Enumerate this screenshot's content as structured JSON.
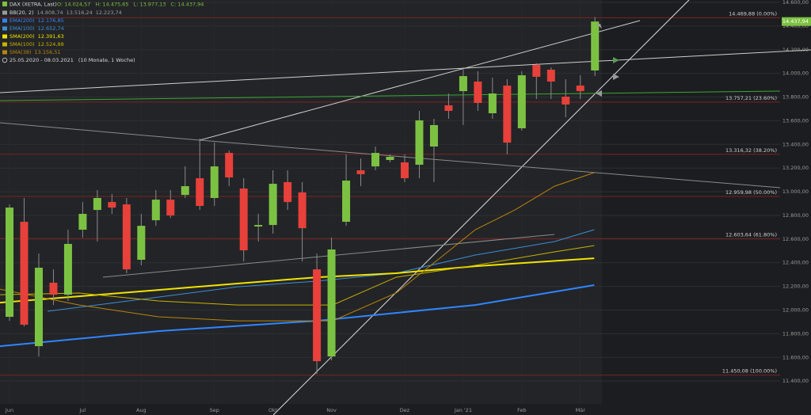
{
  "chart_data": {
    "type": "candlestick",
    "title": "DAX (XETRA, Last)",
    "ohlc_labels": [
      "O: 14.024,57",
      "H: 14.475,65",
      "L: 13.977,13",
      "C: 14.437,94"
    ],
    "date_range": "25.05.2020 - 08.03.2021",
    "period": "(10 Monate, 1 Woche)",
    "last_price": {
      "value": 14437.94,
      "label": "14.437,94"
    },
    "up_color": "#7cc242",
    "down_color": "#e8403a",
    "open": [
      11943,
      12746,
      11695,
      12231,
      12130,
      12679,
      12846,
      12913,
      12893,
      12425,
      12759,
      12933,
      12973,
      13114,
      12947,
      13328,
      13027,
      12706,
      12719,
      13081,
      12994,
      12344,
      11608,
      12746,
      13181,
      13214,
      13268,
      13248,
      13228,
      13382,
      13730,
      13850,
      13931,
      13663,
      13897,
      13536,
      14071,
      14031,
      13803,
      13897,
      14024.57
    ],
    "high": [
      12893,
      12947,
      12478,
      12344,
      12679,
      12913,
      13014,
      12980,
      12947,
      12813,
      13014,
      13014,
      13214,
      13449,
      13415,
      13348,
      13114,
      12813,
      13181,
      13181,
      13081,
      12478,
      12612,
      13315,
      13281,
      13382,
      13315,
      13315,
      13683,
      13616,
      13830,
      14051,
      14018,
      13964,
      13951,
      14018,
      14085,
      14051,
      13951,
      13984,
      14475.65
    ],
    "low": [
      11909,
      11862,
      11608,
      12043,
      12077,
      12612,
      12579,
      12813,
      12311,
      12378,
      12712,
      12779,
      12947,
      12846,
      12880,
      13047,
      12411,
      12579,
      12646,
      12846,
      12411,
      11461,
      11575,
      12712,
      13047,
      13181,
      13248,
      13081,
      13114,
      13081,
      13616,
      13563,
      13683,
      13616,
      13315,
      13516,
      13783,
      13783,
      13629,
      13783,
      13977.13
    ],
    "close": [
      12866,
      11876,
      12358,
      12130,
      12559,
      12813,
      12947,
      12866,
      12344,
      12712,
      12933,
      12799,
      13047,
      12880,
      13214,
      13121,
      12505,
      12719,
      13067,
      12913,
      12692,
      11568,
      12512,
      13094,
      13148,
      13328,
      13295,
      13114,
      13603,
      13563,
      13683,
      13977,
      13750,
      13830,
      13415,
      13984,
      13971,
      13931,
      13737,
      13850,
      14437.94
    ],
    "xlim": [
      -0.65,
      52.65
    ],
    "xticks": [
      {
        "value": 0,
        "label": "Jun"
      },
      {
        "value": 5,
        "label": "Jul"
      },
      {
        "value": 9,
        "label": "Aug"
      },
      {
        "value": 14,
        "label": "Sep"
      },
      {
        "value": 18,
        "label": "Okt"
      },
      {
        "value": 22,
        "label": "Nov"
      },
      {
        "value": 27,
        "label": "Dez"
      },
      {
        "value": 31,
        "label": "Jan '21"
      },
      {
        "value": 35,
        "label": "Feb"
      },
      {
        "value": 39,
        "label": "Mär"
      }
    ],
    "ylim": [
      11207,
      14620
    ],
    "yticks": [
      {
        "value": 11400,
        "label": "11.400,00"
      },
      {
        "value": 11600,
        "label": "11.600,00"
      },
      {
        "value": 11800,
        "label": "11.800,00"
      },
      {
        "value": 12000,
        "label": "12.000,00"
      },
      {
        "value": 12200,
        "label": "12.200,00"
      },
      {
        "value": 12400,
        "label": "12.400,00"
      },
      {
        "value": 12600,
        "label": "12.600,00"
      },
      {
        "value": 12800,
        "label": "12.800,00"
      },
      {
        "value": 13000,
        "label": "13.000,00"
      },
      {
        "value": 13200,
        "label": "13.200,00"
      },
      {
        "value": 13400,
        "label": "13.400,00"
      },
      {
        "value": 13600,
        "label": "13.600,00"
      },
      {
        "value": 13800,
        "label": "13.800,00"
      },
      {
        "value": 14000,
        "label": "14.000,00"
      },
      {
        "value": 14200,
        "label": "14.200,00"
      },
      {
        "value": 14400,
        "label": "14.400,00"
      },
      {
        "value": 14600,
        "label": "14.600,00"
      }
    ],
    "bollinger": {
      "name": "BB(20, 2)",
      "color": "#9a9a9a",
      "labels": [
        "14.808,74",
        "13.516,24",
        "12.223,74"
      ]
    },
    "series": [
      {
        "name": "EMA(200)",
        "color": "#2f86ff",
        "width": 2,
        "last_label": "12.176,85",
        "x": [
          -0.65,
          10.18,
          21.0,
          26.41,
          31.83,
          39.95
        ],
        "values": [
          11695,
          11822,
          11909,
          11976,
          12043,
          12211
        ]
      },
      {
        "name": "EMA(100)",
        "color": "#3b8fd6",
        "width": 1,
        "last_label": "12.652,74",
        "x": [
          2.6,
          10.18,
          15.59,
          21.0,
          26.41,
          31.83,
          37.24,
          39.95
        ],
        "values": [
          11990,
          12110,
          12197,
          12244,
          12311,
          12465,
          12579,
          12679
        ]
      },
      {
        "name": "SMA(200)",
        "color": "#f0e400",
        "width": 2,
        "last_label": "12.391,63",
        "x": [
          -0.65,
          10.18,
          15.59,
          21.0,
          26.41,
          31.83,
          39.95
        ],
        "values": [
          12063,
          12170,
          12224,
          12277,
          12311,
          12371,
          12438
        ]
      },
      {
        "name": "SMA(100)",
        "color": "#c9b300",
        "width": 1,
        "last_label": "12.524,88",
        "x": [
          -0.65,
          4.76,
          10.18,
          15.59,
          22.08,
          26.41,
          31.83,
          37.24,
          39.95
        ],
        "values": [
          12130,
          12144,
          12077,
          12043,
          12043,
          12277,
          12378,
          12492,
          12545
        ]
      },
      {
        "name": "SMA(38)",
        "color": "#b8860b",
        "width": 1,
        "last_label": "13.156,51",
        "x": [
          -0.65,
          4.76,
          10.18,
          15.59,
          22.08,
          26.41,
          29.12,
          31.83,
          34.53,
          37.24,
          39.95
        ],
        "values": [
          12177,
          12043,
          11943,
          11909,
          11909,
          12144,
          12411,
          12679,
          12846,
          13047,
          13161
        ]
      }
    ],
    "fib_levels": [
      {
        "value": 14469.88,
        "label": "14.469,88 (0.00%)"
      },
      {
        "value": 13757.21,
        "label": "13.757,21 (23.60%)"
      },
      {
        "value": 13316.32,
        "label": "13.316,32 (38.20%)"
      },
      {
        "value": 12959.98,
        "label": "12.959,98 (50.00%)"
      },
      {
        "value": 12603.64,
        "label": "12.603,64 (61.80%)"
      },
      {
        "value": 11450.08,
        "label": "11.450,08 (100.00%)"
      }
    ],
    "fib_color": "#7a2424"
  }
}
